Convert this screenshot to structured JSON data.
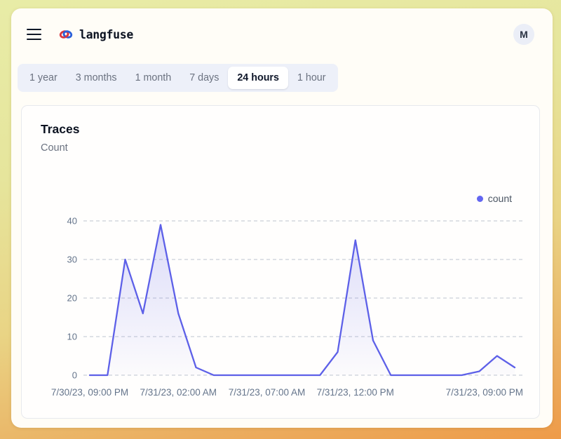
{
  "header": {
    "brand": "langfuse",
    "avatar_initial": "M"
  },
  "tabs": {
    "items": [
      {
        "label": "1 year",
        "active": false
      },
      {
        "label": "3 months",
        "active": false
      },
      {
        "label": "1 month",
        "active": false
      },
      {
        "label": "7 days",
        "active": false
      },
      {
        "label": "24 hours",
        "active": true
      },
      {
        "label": "1 hour",
        "active": false
      }
    ]
  },
  "card": {
    "title": "Traces",
    "subtitle": "Count"
  },
  "legend": {
    "label": "count",
    "dot_color": "#6366f1"
  },
  "chart_data": {
    "type": "area",
    "title": "Traces",
    "ylabel": "Count",
    "series": [
      {
        "name": "count",
        "values": [
          0,
          0,
          30,
          16,
          39,
          16,
          2,
          0,
          0,
          0,
          0,
          0,
          0,
          0,
          6,
          35,
          9,
          0,
          0,
          0,
          0,
          0,
          1,
          5,
          2
        ]
      }
    ],
    "x_start": "7/30/23, 09:00 PM",
    "x_interval": "1 hour",
    "x_tick_labels": [
      {
        "index": 0,
        "label": "7/30/23, 09:00 PM"
      },
      {
        "index": 5,
        "label": "7/31/23, 02:00 AM"
      },
      {
        "index": 10,
        "label": "7/31/23, 07:00 AM"
      },
      {
        "index": 15,
        "label": "7/31/23, 12:00 PM"
      },
      {
        "index": 24,
        "label": "7/31/23, 09:00 PM",
        "anchor": "end"
      }
    ],
    "y_ticks": [
      0,
      10,
      20,
      30,
      40
    ],
    "ylim": [
      0,
      40
    ],
    "grid": "horizontal-dashed",
    "legend_position": "top-right",
    "colors": {
      "line": "#5d60e8",
      "area_top": "rgba(93,96,232,0.22)",
      "area_bottom": "rgba(93,96,232,0.02)",
      "grid": "#cbd0d9",
      "tick": "#64748b"
    }
  }
}
